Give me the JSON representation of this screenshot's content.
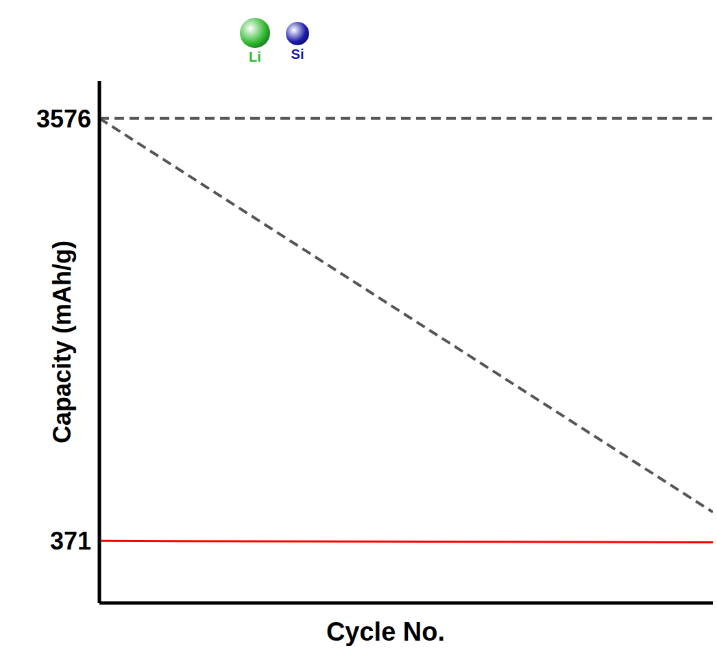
{
  "chart_data": {
    "type": "line",
    "x_label": "Cycle No.",
    "y_label": "Capacity (mAh/g)",
    "x": [
      0,
      100
    ],
    "xlim": [
      0,
      100
    ],
    "ylim": [
      -100,
      3860
    ],
    "yticks": [
      371,
      3576
    ],
    "tick_labels": "y",
    "grid": false,
    "series": [
      {
        "color": "#555555",
        "line_style": "dashed",
        "values": [
          3576,
          3576
        ]
      },
      {
        "color": "#555555",
        "line_style": "dashed",
        "values": [
          3576,
          589
        ]
      },
      {
        "color": "#ff0000",
        "line_style": "solid",
        "values": [
          371,
          360
        ]
      }
    ],
    "annotations": [
      {
        "text": "Li",
        "color": "#2db82d"
      },
      {
        "text": "Si",
        "color": "#1a1aaa"
      }
    ]
  }
}
